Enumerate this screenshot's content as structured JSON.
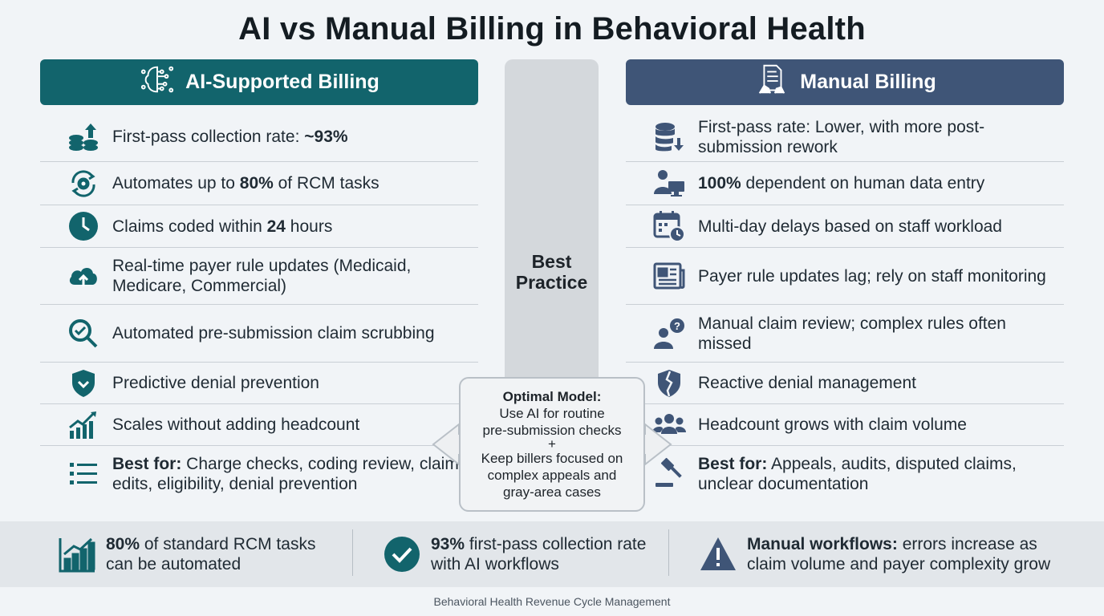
{
  "title": "AI vs Manual Billing in Behavioral Health",
  "left_header": {
    "label": "AI-Supported Billing",
    "icon": "ai-brain-icon"
  },
  "right_header": {
    "label": "Manual Billing",
    "icon": "document-hand-icon"
  },
  "middle": {
    "label_line1": "Best",
    "label_line2": "Practice"
  },
  "left_items": [
    {
      "icon": "coins-up-arrow-icon",
      "pre": "First-pass collection rate: ",
      "bold": "~93%",
      "post": ""
    },
    {
      "icon": "automation-gear-icon",
      "pre": "Automates up to ",
      "bold": "80%",
      "post": " of RCM tasks"
    },
    {
      "icon": "clock-icon",
      "pre": "Claims coded within ",
      "bold": "24",
      "post": " hours"
    },
    {
      "icon": "cloud-upload-icon",
      "pre": "Real-time payer rule updates (Medicaid, Medicare, Commercial)",
      "bold": "",
      "post": ""
    },
    {
      "icon": "magnifier-check-icon",
      "pre": "Automated pre-submission claim scrubbing",
      "bold": "",
      "post": ""
    },
    {
      "icon": "shield-check-icon",
      "pre": "Predictive denial prevention",
      "bold": "",
      "post": ""
    },
    {
      "icon": "growth-chart-icon",
      "pre": "Scales without adding headcount",
      "bold": "",
      "post": ""
    },
    {
      "icon": "list-icon",
      "pre": "",
      "bold": "Best for:",
      "post": " Charge checks, coding review, claim edits, eligibility, denial prevention"
    }
  ],
  "right_items": [
    {
      "icon": "database-down-arrow-icon",
      "pre": "First-pass rate: Lower, with more post-submission rework",
      "bold": "",
      "post": ""
    },
    {
      "icon": "person-computer-icon",
      "pre": "",
      "bold": "100%",
      "post": " dependent on human data entry"
    },
    {
      "icon": "calendar-clock-icon",
      "pre": "Multi-day delays based on staff workload",
      "bold": "",
      "post": ""
    },
    {
      "icon": "newspaper-icon",
      "pre": "Payer rule updates lag; rely on staff monitoring",
      "bold": "",
      "post": ""
    },
    {
      "icon": "person-question-icon",
      "pre": "Manual claim review; complex rules often missed",
      "bold": "",
      "post": ""
    },
    {
      "icon": "broken-shield-icon",
      "pre": "Reactive denial management",
      "bold": "",
      "post": ""
    },
    {
      "icon": "group-people-icon",
      "pre": "Headcount grows with claim volume",
      "bold": "",
      "post": ""
    },
    {
      "icon": "gavel-icon",
      "pre": "",
      "bold": "Best for:",
      "post": " Appeals, audits, disputed claims, unclear documentation"
    }
  ],
  "callout": {
    "heading": "Optimal Model:",
    "line1": "Use AI for routine",
    "line2": "pre-submission checks",
    "plus": "+",
    "line3": "Keep billers focused on",
    "line4": "complex appeals and",
    "line5": "gray-area cases"
  },
  "stats": [
    {
      "icon": "bar-chart-icon",
      "bold": "80%",
      "rest": " of standard RCM tasks can be automated"
    },
    {
      "icon": "check-circle-icon",
      "bold": "93%",
      "rest": " first-pass collection rate with AI workflows"
    },
    {
      "icon": "warning-icon",
      "bold": "Manual workflows:",
      "rest": " errors increase as claim volume and payer complexity grow"
    }
  ],
  "footer": "Behavioral Health Revenue Cycle Management",
  "colors": {
    "teal": "#12646c",
    "slate": "#3f5577",
    "background": "#f1f4f7"
  }
}
